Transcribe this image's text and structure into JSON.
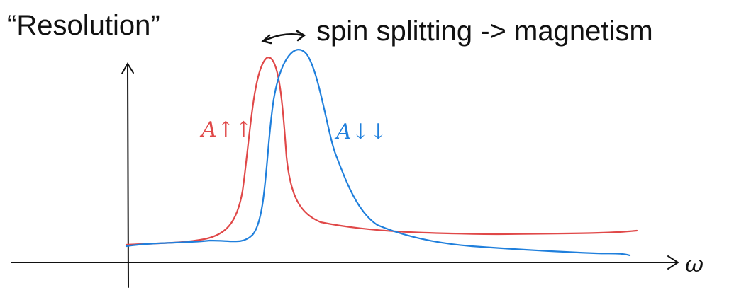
{
  "title": "“Resolution”",
  "annotation": "spin splitting -> magnetism",
  "x_axis_label": "ω",
  "curves": [
    {
      "label": "A↑↑",
      "color": "#e04848"
    },
    {
      "label": "A↓↓",
      "color": "#1f7fdc"
    }
  ]
}
